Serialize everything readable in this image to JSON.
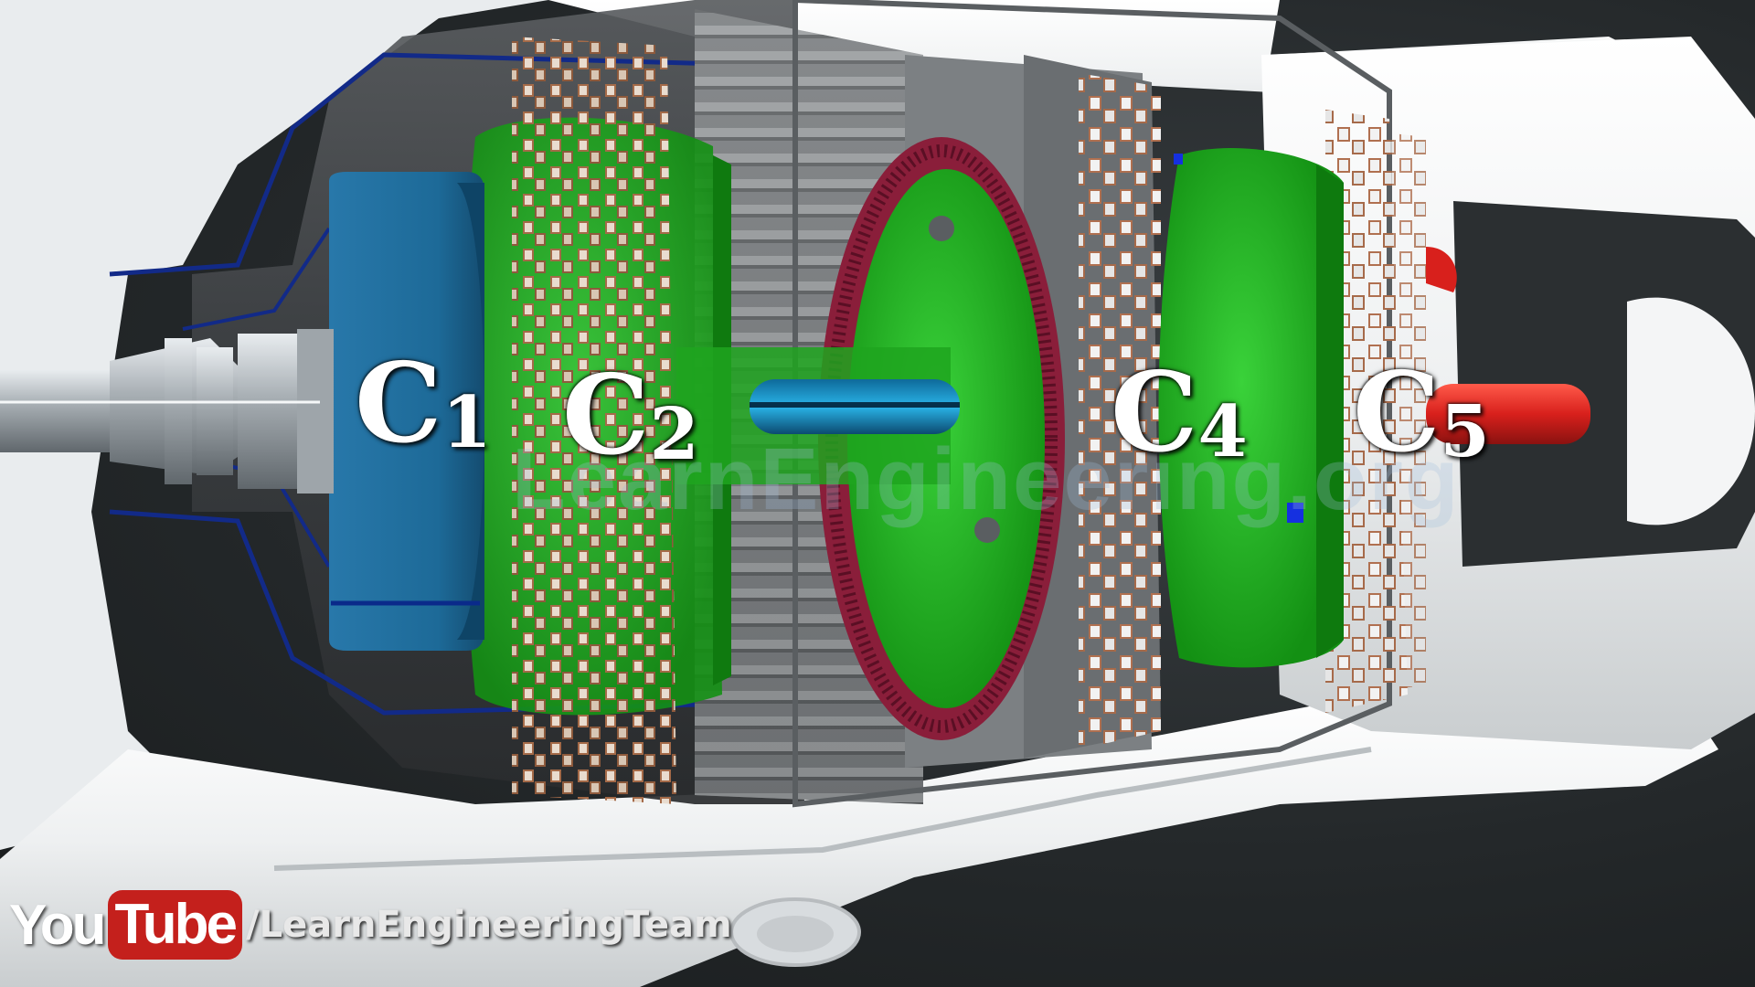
{
  "labels": {
    "c1": {
      "letter": "C",
      "num": "1"
    },
    "c2": {
      "letter": "C",
      "num": "2"
    },
    "c4": {
      "letter": "C",
      "num": "4"
    },
    "c5": {
      "letter": "C",
      "num": "5"
    }
  },
  "watermark": "LearnEngineering.org",
  "youtube": {
    "you": "You",
    "tube": "Tube",
    "channel": "/LearnEngineeringTeam"
  },
  "colors": {
    "housing": "#f2f4f5",
    "drum_grey": "#8a8d90",
    "clutch_blue": "#1f6fa0",
    "gear_green": "#1fae1f",
    "ring_gear": "#8a1e3a",
    "shaft_red": "#d8201c",
    "friction_plate": "#a66a4a"
  }
}
